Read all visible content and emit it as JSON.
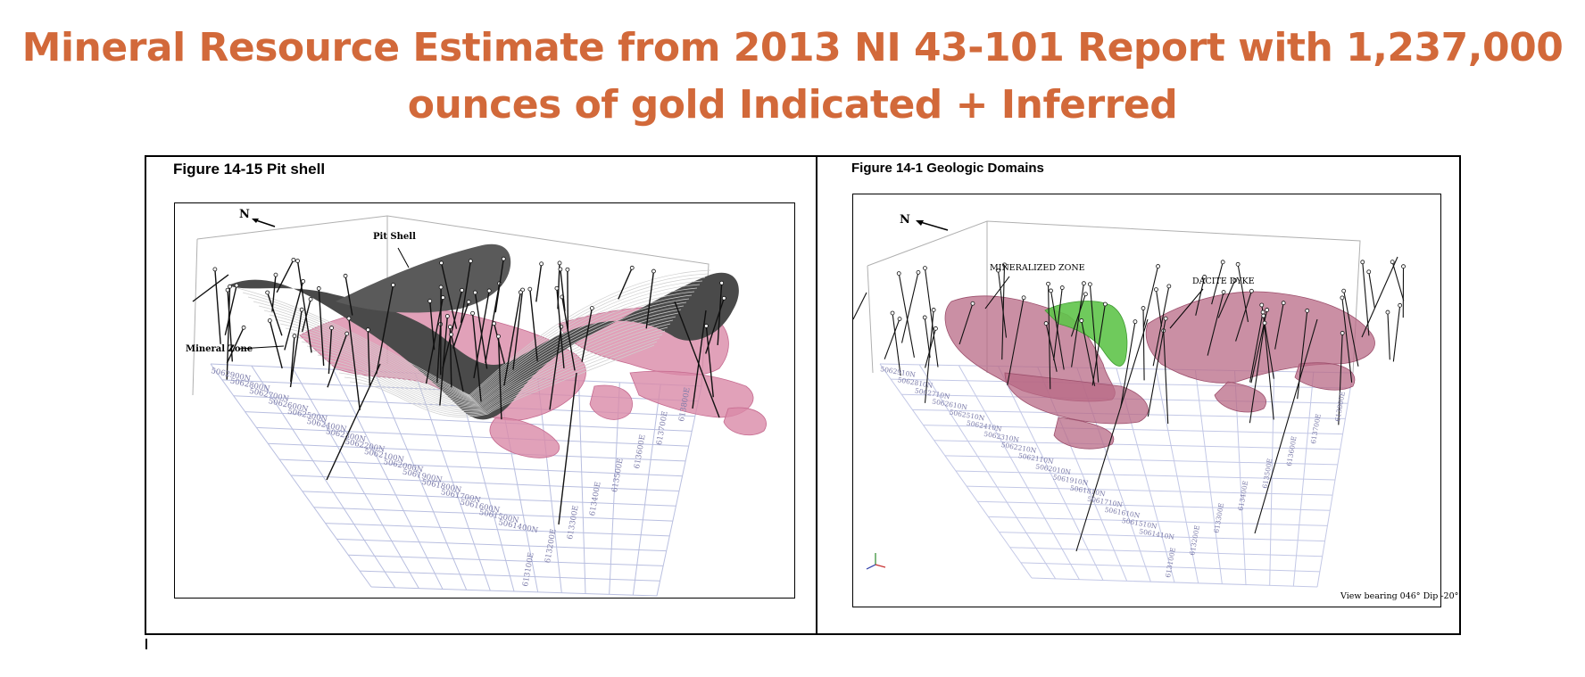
{
  "slide": {
    "title_line1": "Mineral Resource Estimate from 2013 NI 43-101 Report with 1,237,000",
    "title_line2": "ounces of gold Indicated + Inferred",
    "title_color": "#d2693a"
  },
  "left_figure": {
    "caption": "Figure 14-15 Pit shell",
    "north_label": "N",
    "labels": {
      "pit_shell": "Pit Shell",
      "mineral_zone": "Mineral Zone"
    },
    "northings": [
      "5062900N",
      "5062800N",
      "5062700N",
      "5062600N",
      "5062500N",
      "5062400N",
      "5062300N",
      "5062200N",
      "5062100N",
      "5062000N",
      "5061900N",
      "5061800N",
      "5061700N",
      "5061600N",
      "5061500N",
      "5061400N"
    ],
    "eastings": [
      "613100E",
      "613200E",
      "613300E",
      "613400E",
      "613500E",
      "613600E",
      "613700E",
      "613800E"
    ],
    "colors": {
      "shell": "#4a4a4a",
      "zone": "#d98aa8",
      "grid": "#b9bfe0"
    }
  },
  "right_figure": {
    "caption": "Figure 14-1 Geologic Domains",
    "north_label": "N",
    "labels": {
      "mineralized_zone": "MINERALIZED ZONE",
      "dacite_dyke": "DACITE DYKE"
    },
    "view_text": "View bearing 046°  Dip -20°",
    "northings": [
      "5062910N",
      "5062810N",
      "5062710N",
      "5062610N",
      "5062510N",
      "5062410N",
      "5062310N",
      "5062210N",
      "5062110N",
      "5062010N",
      "5061910N",
      "5061810N",
      "5061710N",
      "5061610N",
      "5061510N",
      "5061410N"
    ],
    "eastings": [
      "613100E",
      "613200E",
      "613300E",
      "613400E",
      "613500E",
      "613600E",
      "613700E",
      "613800E"
    ],
    "colors": {
      "zone": "#b86a86",
      "dyke": "#5fc44a",
      "grid": "#c3c8e6"
    }
  }
}
